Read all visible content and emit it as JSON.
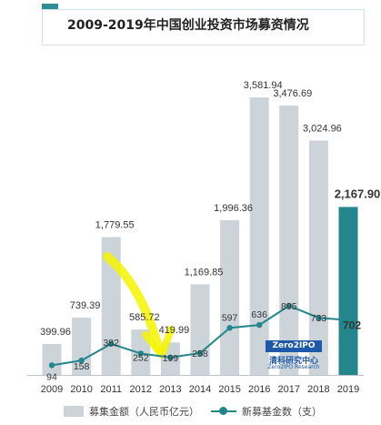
{
  "chart_data": {
    "type": "bar",
    "title": "2009-2019年中国创业投资市场募资情况",
    "categories": [
      "2009",
      "2010",
      "2011",
      "2012",
      "2013",
      "2014",
      "2015",
      "2016",
      "2017",
      "2018",
      "2019"
    ],
    "series": [
      {
        "name": "募集金额（人民币亿元）",
        "type": "bar",
        "values": [
          399.96,
          739.39,
          1779.55,
          585.72,
          419.99,
          1169.85,
          1996.36,
          3581.94,
          3476.69,
          3024.96,
          2167.9
        ],
        "labels": [
          "399.96",
          "739.39",
          "1,779.55",
          "585.72",
          "419.99",
          "1,169.85",
          "1,996.36",
          "3,581.94",
          "3,476.69",
          "3,024.96",
          "2,167.90"
        ]
      },
      {
        "name": "新募基金数（支）",
        "type": "line",
        "values": [
          94,
          158,
          382,
          252,
          199,
          258,
          597,
          636,
          895,
          733,
          702
        ],
        "labels": [
          "94",
          "158",
          "382",
          "252",
          "199",
          "258",
          "597",
          "636",
          "895",
          "733",
          "702"
        ]
      }
    ],
    "highlight_index": 10,
    "colors": {
      "bar": "#ccd3d9",
      "bar_highlight": "#23868c",
      "line": "#23868c",
      "marker": "#23868c",
      "annotation": "#f5f500",
      "title_accent": "#2e8f96"
    },
    "annotation": "yellow hand-drawn arrow from 2011 bar toward 2013 bar",
    "watermark": {
      "line1": "Zero2IPO",
      "line2": "清科研究中心",
      "line3": "Zero2IPO Research"
    },
    "legend_position": "bottom",
    "grid": false
  }
}
